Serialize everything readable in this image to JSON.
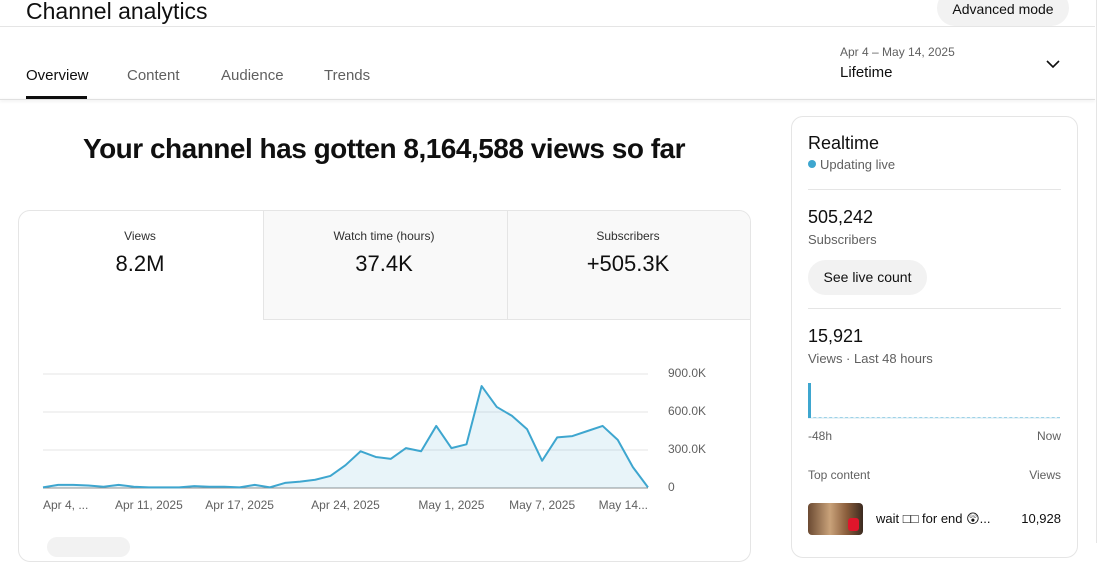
{
  "header": {
    "title": "Channel analytics",
    "advanced_button": "Advanced mode"
  },
  "tabs": [
    "Overview",
    "Content",
    "Audience",
    "Trends"
  ],
  "date_range": {
    "range": "Apr 4 – May 14, 2025",
    "label": "Lifetime"
  },
  "headline": "Your channel has gotten 8,164,588 views so far",
  "metrics": [
    {
      "label": "Views",
      "value": "8.2M"
    },
    {
      "label": "Watch time (hours)",
      "value": "37.4K"
    },
    {
      "label": "Subscribers",
      "value": "+505.3K"
    }
  ],
  "chart_data": {
    "type": "line",
    "categories": [
      "Apr 4, ...",
      null,
      null,
      null,
      null,
      null,
      null,
      "Apr 11, 2025",
      null,
      null,
      null,
      null,
      null,
      "Apr 17, 2025",
      null,
      null,
      null,
      null,
      null,
      null,
      "Apr 24, 2025",
      null,
      null,
      null,
      null,
      null,
      null,
      "May 1, 2025",
      null,
      null,
      null,
      null,
      null,
      "May 7, 2025",
      null,
      null,
      null,
      null,
      null,
      null,
      "May 14..."
    ],
    "series": [
      {
        "color": "#3ea6cf",
        "values": [
          5000,
          25000,
          25000,
          20000,
          10000,
          25000,
          10000,
          5000,
          5000,
          5000,
          15000,
          10000,
          10000,
          5000,
          25000,
          5000,
          40000,
          50000,
          65000,
          95000,
          180000,
          290000,
          245000,
          230000,
          315000,
          290000,
          490000,
          315000,
          345000,
          805000,
          640000,
          570000,
          465000,
          215000,
          400000,
          410000,
          450000,
          490000,
          380000,
          165000,
          5000
        ]
      }
    ],
    "ylim": [
      0,
      900000
    ],
    "yticks": [
      0,
      {
        "value": 300000,
        "label": "300.0K"
      },
      {
        "value": 600000,
        "label": "600.0K"
      },
      {
        "value": 900000,
        "label": "900.0K"
      }
    ],
    "grid": true
  },
  "realtime": {
    "title": "Realtime",
    "status": "Updating live",
    "subscribers": "505,242",
    "subscribers_label": "Subscribers",
    "live_button": "See live count",
    "views": "15,921",
    "views_label": "Views · Last 48 hours",
    "views_48h": [
      14000,
      30,
      30,
      30,
      30,
      30,
      30,
      30,
      30,
      30,
      30,
      30,
      30,
      30,
      30,
      30,
      30,
      30,
      30,
      30,
      30,
      30,
      30,
      30,
      30,
      30,
      30,
      30,
      30,
      30,
      30,
      30,
      30,
      30,
      30,
      30,
      30,
      30,
      30,
      30,
      30,
      30,
      30,
      30,
      30,
      30,
      30,
      30
    ],
    "start_label": "-48h",
    "end_label": "Now",
    "top_content_label": "Top content",
    "views_column": "Views",
    "top_content": [
      {
        "title": "wait □□ for end 😲...",
        "views": "10,928"
      }
    ]
  }
}
